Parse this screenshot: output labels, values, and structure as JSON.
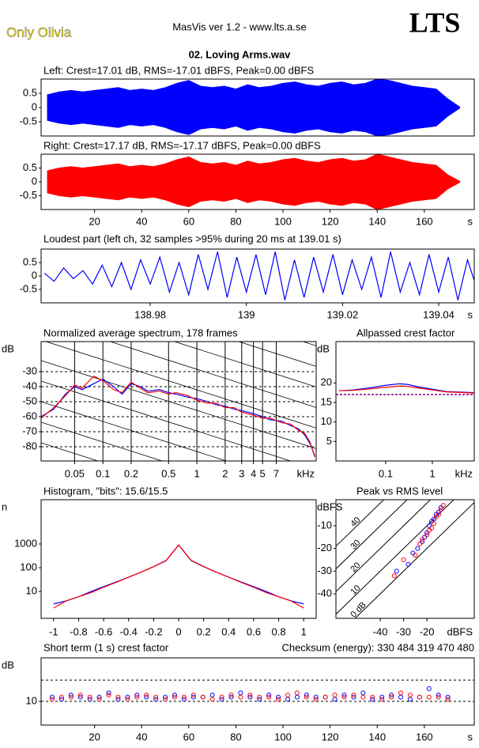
{
  "header": {
    "artist": "Only Olivia",
    "app": "MasVis ver 1.2 - www.lts.a.se",
    "logo": "LTS",
    "file": "02. Loving Arms.wav"
  },
  "chart_data": [
    {
      "type": "area",
      "title": "Left: Crest=17.01 dB, RMS=-17.01 dBFS, Peak=0.00 dBFS",
      "xlim": [
        -2.7,
        181.2
      ],
      "ylim": [
        -1,
        1
      ],
      "yticks": [
        0.5,
        0,
        -0.5
      ],
      "x": [
        0,
        5,
        10,
        15,
        20,
        25,
        30,
        35,
        40,
        45,
        50,
        55,
        60,
        65,
        70,
        75,
        80,
        85,
        90,
        95,
        100,
        105,
        110,
        115,
        120,
        125,
        130,
        135,
        140,
        145,
        150,
        155,
        160,
        165,
        170,
        175
      ],
      "series": [
        {
          "name": "Left",
          "color": "#0000ff",
          "values": [
            0.45,
            0.55,
            0.6,
            0.55,
            0.6,
            0.65,
            0.7,
            0.6,
            0.65,
            0.6,
            0.7,
            0.85,
            0.95,
            0.75,
            0.7,
            0.75,
            0.65,
            0.8,
            0.7,
            0.75,
            0.85,
            0.9,
            0.8,
            0.75,
            0.85,
            0.9,
            0.8,
            0.85,
            1.0,
            0.95,
            0.85,
            0.75,
            0.7,
            0.65,
            0.3,
            0.02
          ]
        }
      ]
    },
    {
      "type": "area",
      "title": "Right: Crest=17.17 dB, RMS=-17.17 dBFS, Peak=0.00 dBFS",
      "xlim": [
        -2.7,
        181.2
      ],
      "ylim": [
        -1,
        1
      ],
      "yticks": [
        0.5,
        0,
        -0.5
      ],
      "xticks": [
        20,
        40,
        60,
        80,
        100,
        120,
        140,
        160
      ],
      "xunit": "s",
      "x": [
        0,
        5,
        10,
        15,
        20,
        25,
        30,
        35,
        40,
        45,
        50,
        55,
        60,
        65,
        70,
        75,
        80,
        85,
        90,
        95,
        100,
        105,
        110,
        115,
        120,
        125,
        130,
        135,
        140,
        145,
        150,
        155,
        160,
        165,
        170,
        175
      ],
      "series": [
        {
          "name": "Right",
          "color": "#ff0000",
          "values": [
            0.4,
            0.5,
            0.55,
            0.5,
            0.55,
            0.6,
            0.65,
            0.55,
            0.6,
            0.55,
            0.65,
            0.8,
            0.9,
            0.7,
            0.65,
            0.7,
            0.6,
            0.75,
            0.65,
            0.7,
            0.8,
            0.85,
            0.75,
            0.7,
            0.8,
            0.85,
            0.75,
            0.8,
            1.0,
            0.9,
            0.8,
            0.7,
            0.65,
            0.6,
            0.25,
            0.02
          ]
        }
      ]
    },
    {
      "type": "line",
      "title": "Loudest part (left  ch, 32 samples >95% during 20 ms at 139.01 s)",
      "xlim": [
        138.9573,
        139.0474
      ],
      "ylim": [
        -1,
        1
      ],
      "yticks": [
        0.5,
        0,
        -0.5
      ],
      "xticks": [
        138.98,
        139,
        139.02,
        139.04
      ],
      "xunit": "s",
      "x": [
        138.958,
        138.96,
        138.962,
        138.964,
        138.966,
        138.968,
        138.97,
        138.972,
        138.974,
        138.976,
        138.978,
        138.98,
        138.982,
        138.984,
        138.986,
        138.988,
        138.99,
        138.992,
        138.994,
        138.996,
        138.998,
        139,
        139.002,
        139.004,
        139.006,
        139.008,
        139.01,
        139.012,
        139.014,
        139.016,
        139.018,
        139.02,
        139.022,
        139.024,
        139.026,
        139.028,
        139.03,
        139.032,
        139.034,
        139.036,
        139.038,
        139.04,
        139.042,
        139.044,
        139.046,
        139.048
      ],
      "series": [
        {
          "name": "Left",
          "color": "#0000ff",
          "values": [
            0.1,
            -0.2,
            0.3,
            -0.1,
            0.2,
            -0.3,
            0.4,
            -0.4,
            0.5,
            -0.5,
            0.6,
            -0.3,
            0.7,
            -0.6,
            0.5,
            -0.7,
            0.8,
            -0.5,
            0.9,
            -0.8,
            0.7,
            -0.6,
            0.8,
            -0.7,
            0.9,
            -0.9,
            0.6,
            -0.8,
            0.7,
            -0.6,
            0.8,
            -0.7,
            0.6,
            -0.5,
            0.7,
            -0.8,
            0.9,
            -0.6,
            0.5,
            -0.7,
            0.8,
            -0.6,
            0.7,
            -0.9,
            0.6,
            -0.5
          ]
        }
      ]
    },
    {
      "type": "line",
      "title": "Normalized average spectrum, 178 frames",
      "yunit": "dB",
      "xunit": "kHz",
      "xlog": true,
      "grid": true,
      "diagonals": true,
      "xlim": [
        0.022,
        18.6
      ],
      "ylim": [
        -89.5,
        -10
      ],
      "yticks": [
        -30,
        -40,
        -50,
        -60,
        -70,
        -80
      ],
      "xticks": [
        0.05,
        0.1,
        0.2,
        0.5,
        1,
        2,
        3,
        4,
        5,
        7
      ],
      "x": [
        0.022,
        0.03,
        0.04,
        0.05,
        0.06,
        0.08,
        0.1,
        0.13,
        0.16,
        0.2,
        0.25,
        0.3,
        0.4,
        0.5,
        0.6,
        0.8,
        1,
        1.3,
        1.6,
        2,
        2.5,
        3,
        4,
        5,
        6,
        8,
        10,
        12,
        14,
        16,
        18
      ],
      "series": [
        {
          "name": "Left",
          "color": "#0000ff",
          "values": [
            -60,
            -55,
            -45,
            -40,
            -42,
            -38,
            -35,
            -40,
            -45,
            -38,
            -40,
            -43,
            -42,
            -44,
            -45,
            -47,
            -48,
            -50,
            -52,
            -53,
            -55,
            -56,
            -58,
            -60,
            -62,
            -63,
            -66,
            -68,
            -72,
            -78,
            -86
          ]
        },
        {
          "name": "Right",
          "color": "#ff0000",
          "values": [
            -61,
            -54,
            -46,
            -39,
            -41,
            -33,
            -36,
            -42,
            -44,
            -37,
            -41,
            -44,
            -43,
            -45,
            -44,
            -46,
            -49,
            -51,
            -51,
            -54,
            -54,
            -57,
            -59,
            -61,
            -61,
            -64,
            -65,
            -69,
            -71,
            -77,
            -87
          ]
        }
      ]
    },
    {
      "type": "line",
      "title": "Allpassed crest factor",
      "yunit": "dB",
      "xunit": "kHz",
      "xlog": true,
      "xlim": [
        0.0086,
        7.9
      ],
      "ylim": [
        0,
        30.6
      ],
      "yticks": [
        20,
        15,
        10,
        5
      ],
      "xticks": [
        0.1,
        1
      ],
      "reference_line": 17.01,
      "x": [
        0.01,
        0.02,
        0.05,
        0.1,
        0.2,
        0.3,
        0.5,
        1,
        2,
        5,
        7.9
      ],
      "series": [
        {
          "name": "Left",
          "color": "#0000ff",
          "values": [
            18,
            18.2,
            18.8,
            19.4,
            19.8,
            19.6,
            19,
            18.4,
            17.8,
            17.6,
            17.5
          ]
        },
        {
          "name": "Right",
          "color": "#ff0000",
          "values": [
            18,
            18.1,
            18.5,
            18.9,
            19.2,
            19.1,
            18.7,
            18.2,
            17.7,
            17.5,
            17.4
          ]
        }
      ]
    },
    {
      "type": "line",
      "title": "Histogram, \"bits\": 15.6/15.5",
      "yunit": "n",
      "ylog": true,
      "xlim": [
        -1.1,
        1.1
      ],
      "ylim": [
        0.74,
        73000
      ],
      "yticks": [
        10,
        100,
        1000
      ],
      "xticks": [
        -1,
        -0.8,
        -0.6,
        -0.4,
        -0.2,
        0,
        0.2,
        0.4,
        0.6,
        0.8,
        1
      ],
      "x": [
        -1,
        -0.9,
        -0.8,
        -0.7,
        -0.6,
        -0.5,
        -0.4,
        -0.3,
        -0.2,
        -0.1,
        0,
        0.1,
        0.2,
        0.3,
        0.4,
        0.5,
        0.6,
        0.7,
        0.8,
        0.9,
        1
      ],
      "series": [
        {
          "name": "Left",
          "color": "#0000ff",
          "values": [
            3,
            4,
            6,
            10,
            16,
            25,
            40,
            65,
            110,
            200,
            900,
            200,
            110,
            65,
            40,
            25,
            16,
            10,
            6,
            4,
            3
          ]
        },
        {
          "name": "Right",
          "color": "#ff0000",
          "values": [
            2,
            4,
            6,
            9,
            15,
            24,
            40,
            66,
            112,
            205,
            900,
            205,
            112,
            66,
            40,
            24,
            15,
            9,
            6,
            4,
            2
          ]
        }
      ]
    },
    {
      "type": "scatter",
      "title": "Peak vs RMS level",
      "yunit": "dBFS",
      "xunit": "dBFS",
      "xlim": [
        -59,
        0.3
      ],
      "ylim": [
        -50.8,
        1.5
      ],
      "yticks": [
        -10,
        -20,
        -30,
        -40
      ],
      "xticks": [
        -40,
        -30,
        -20
      ],
      "diagonals": [
        40,
        30,
        20,
        10,
        {
          "value": 0,
          "label": "0 dB"
        }
      ],
      "series": [
        {
          "name": "Left",
          "color": "#0000ff",
          "x": [
            -33,
            -28,
            -26,
            -24,
            -22,
            -21,
            -20,
            -19,
            -18,
            -17,
            -16,
            -15,
            -14
          ],
          "values": [
            -30,
            -27,
            -22,
            -20,
            -17,
            -15,
            -13,
            -10,
            -8,
            -7,
            -5,
            -4,
            -2
          ]
        },
        {
          "name": "Right",
          "color": "#ff0000",
          "x": [
            -34,
            -30,
            -25,
            -23,
            -22,
            -20,
            -19,
            -18,
            -17,
            -16,
            -15,
            -14,
            -13
          ],
          "values": [
            -32,
            -25,
            -23,
            -18,
            -16,
            -14,
            -12,
            -11,
            -9,
            -6,
            -5,
            -3,
            -1
          ]
        }
      ]
    },
    {
      "type": "scatter",
      "title": "Short term (1 s) crest factor",
      "checksum": "Checksum (energy):  330 484 319 470 480",
      "yunit": "dB",
      "xunit": "s",
      "xlim": [
        -2.7,
        181.2
      ],
      "ylim": [
        -1.1,
        30.4
      ],
      "yticks": [
        10
      ],
      "grid_lines": [
        10,
        20
      ],
      "xticks": [
        20,
        40,
        60,
        80,
        100,
        120,
        140,
        160
      ],
      "x": [
        2,
        6,
        10,
        14,
        18,
        22,
        26,
        30,
        34,
        38,
        42,
        46,
        50,
        54,
        58,
        62,
        66,
        70,
        74,
        78,
        82,
        86,
        90,
        94,
        98,
        102,
        106,
        110,
        114,
        118,
        122,
        126,
        130,
        134,
        138,
        142,
        146,
        150,
        154,
        158,
        162,
        166,
        170
      ],
      "series": [
        {
          "name": "Left",
          "color": "#0000ff",
          "values": [
            12,
            11,
            13,
            12,
            11,
            12,
            14,
            11,
            12,
            13,
            12,
            11,
            12,
            13,
            11,
            12,
            12,
            13,
            11,
            12,
            14,
            12,
            11,
            13,
            12,
            11,
            12,
            13,
            12,
            12,
            11,
            13,
            12,
            14,
            11,
            12,
            13,
            12,
            11,
            12,
            16,
            13,
            12
          ]
        },
        {
          "name": "Right",
          "color": "#ff0000",
          "values": [
            11,
            12,
            12,
            13,
            12,
            11,
            13,
            12,
            11,
            12,
            13,
            12,
            11,
            12,
            12,
            13,
            12,
            11,
            12,
            13,
            12,
            13,
            12,
            12,
            11,
            13,
            14,
            12,
            11,
            12,
            13,
            12,
            13,
            12,
            12,
            11,
            12,
            14,
            13,
            12,
            12,
            12,
            11
          ]
        }
      ]
    }
  ]
}
